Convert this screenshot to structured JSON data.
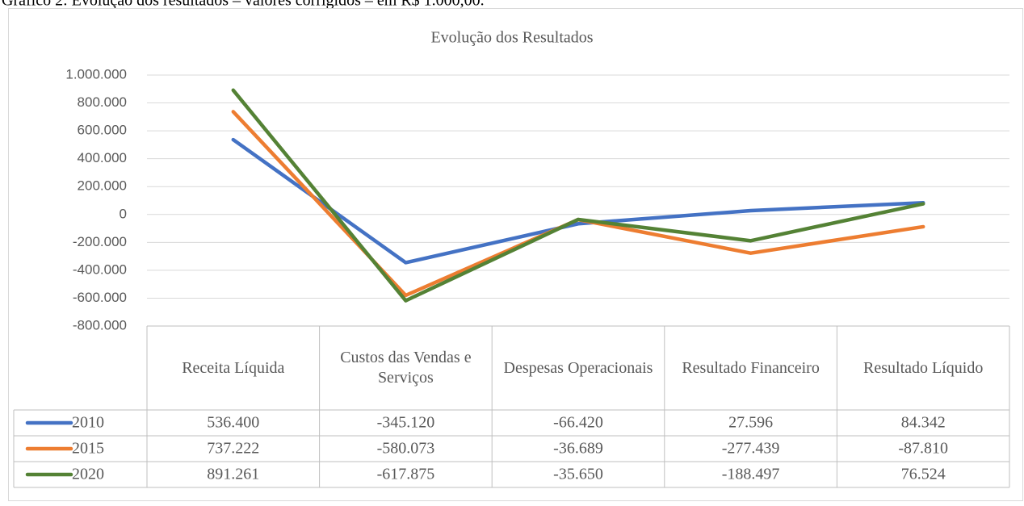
{
  "caption": "Gráfico 2: Evolução dos resultados – valores corrigidos – em R$ 1.000,00.",
  "chart_data": {
    "type": "line",
    "title": "Evolução dos Resultados",
    "categories": [
      "Receita Líquida",
      "Custos das Vendas e Serviços",
      "Despesas Operacionais",
      "Resultado Financeiro",
      "Resultado Líquido"
    ],
    "series": [
      {
        "name": "2010",
        "color": "#4472c4",
        "values": [
          536400,
          -345120,
          -66420,
          27596,
          84342
        ],
        "value_labels": [
          "536.400",
          "-345.120",
          "-66.420",
          "27.596",
          "84.342"
        ]
      },
      {
        "name": "2015",
        "color": "#ed7d31",
        "values": [
          737222,
          -580073,
          -36689,
          -277439,
          -87810
        ],
        "value_labels": [
          "737.222",
          "-580.073",
          "-36.689",
          "-277.439",
          "-87.810"
        ]
      },
      {
        "name": "2020",
        "color": "#548235",
        "values": [
          891261,
          -617875,
          -35650,
          -188497,
          76524
        ],
        "value_labels": [
          "891.261",
          "-617.875",
          "-35.650",
          "-188.497",
          "76.524"
        ]
      }
    ],
    "ylim": [
      -800000,
      1000000
    ],
    "yticks": [
      {
        "value": -800000,
        "label": "-800.000"
      },
      {
        "value": -600000,
        "label": "-600.000"
      },
      {
        "value": -400000,
        "label": "-400.000"
      },
      {
        "value": -200000,
        "label": "-200.000"
      },
      0,
      {
        "value": 200000,
        "label": "200.000"
      },
      {
        "value": 400000,
        "label": "400.000"
      },
      {
        "value": 600000,
        "label": "600.000"
      },
      {
        "value": 800000,
        "label": "800.000"
      },
      {
        "value": 1000000,
        "label": "1.000.000"
      }
    ],
    "grid": true,
    "legend": "table"
  }
}
